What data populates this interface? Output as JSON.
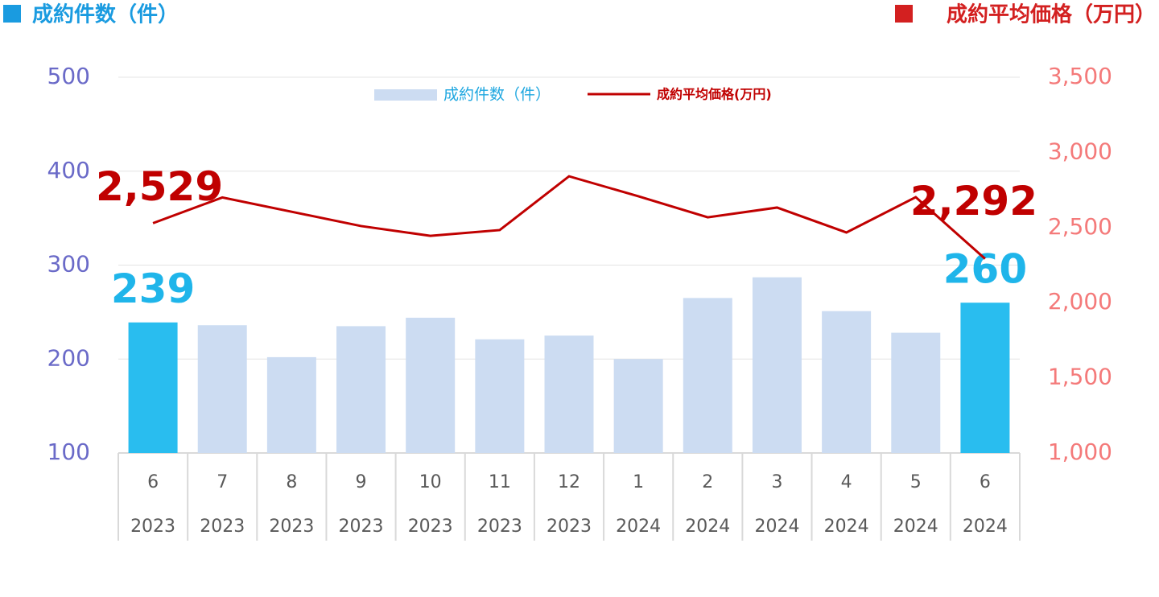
{
  "chart_data": {
    "type": "bar_line",
    "left_axis_title": "成約件数（件）",
    "right_axis_title": "成約平均価格（万円）",
    "categories": [
      "6",
      "7",
      "8",
      "9",
      "10",
      "11",
      "12",
      "1",
      "2",
      "3",
      "4",
      "5",
      "6"
    ],
    "groups": [
      "2023",
      "2023",
      "2023",
      "2023",
      "2023",
      "2023",
      "2023",
      "2024",
      "2024",
      "2024",
      "2024",
      "2024",
      "2024"
    ],
    "series": [
      {
        "name": "成約件数（件）",
        "type": "bar",
        "color": "#ccdcf2",
        "colors": [
          "#29bdef",
          "#ccdcf2",
          "#ccdcf2",
          "#ccdcf2",
          "#ccdcf2",
          "#ccdcf2",
          "#ccdcf2",
          "#ccdcf2",
          "#ccdcf2",
          "#ccdcf2",
          "#ccdcf2",
          "#ccdcf2",
          "#29bdef"
        ],
        "values": [
          239,
          236,
          202,
          235,
          244,
          221,
          225,
          200,
          265,
          287,
          251,
          228,
          260
        ],
        "value_labels": [
          "239",
          null,
          null,
          null,
          null,
          null,
          null,
          null,
          null,
          null,
          null,
          null,
          "260"
        ]
      },
      {
        "name": "成約平均価格(万円)",
        "type": "line",
        "axis": "y2",
        "color": "#c00000",
        "values": [
          2529,
          2700,
          2605,
          2510,
          2445,
          2483,
          2841,
          2708,
          2568,
          2633,
          2467,
          2702,
          2292
        ],
        "value_labels": [
          "2,529",
          null,
          null,
          null,
          null,
          null,
          null,
          null,
          null,
          null,
          null,
          null,
          "2,292"
        ]
      }
    ],
    "ylim": [
      100,
      500
    ],
    "yticks": [
      100,
      200,
      300,
      400,
      500
    ],
    "y2lim": [
      1000,
      3500
    ],
    "y2ticks": [
      {
        "value": 1000,
        "label": "1,000"
      },
      {
        "value": 1500,
        "label": "1,500"
      },
      {
        "value": 2000,
        "label": "2,000"
      },
      {
        "value": 2500,
        "label": "2,500"
      },
      {
        "value": 3000,
        "label": "3,000"
      },
      {
        "value": 3500,
        "label": "3,500"
      }
    ],
    "grid": true
  }
}
